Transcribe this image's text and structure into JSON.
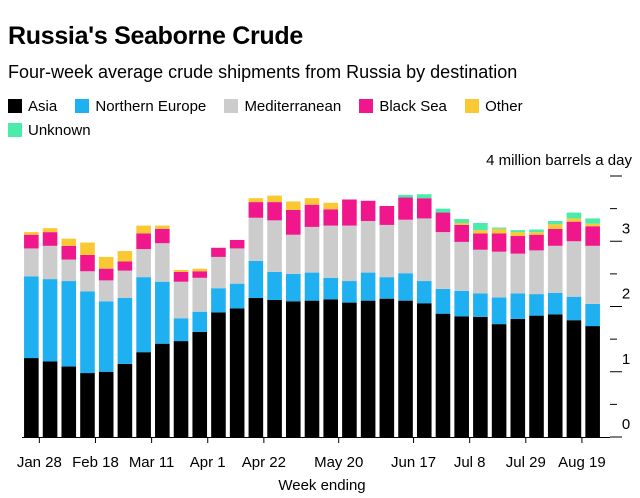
{
  "chart_data": {
    "type": "bar",
    "stacked": true,
    "title": "Russia's Seaborne Crude",
    "subtitle": "Four-week average crude shipments from Russia by destination",
    "unit_label": "4 million barrels a day",
    "xlabel": "Week ending",
    "ylim": [
      0,
      4
    ],
    "y_ticks": [
      0,
      1,
      2,
      3
    ],
    "y_tick_labels": [
      "0",
      "1",
      "2",
      "3"
    ],
    "x_tick_labels": [
      {
        "index": 0,
        "label": "Jan 28"
      },
      {
        "index": 3,
        "label": "Feb 18"
      },
      {
        "index": 6,
        "label": "Mar 11"
      },
      {
        "index": 9,
        "label": "Apr 1"
      },
      {
        "index": 12,
        "label": "Apr 22"
      },
      {
        "index": 16,
        "label": "May 20"
      },
      {
        "index": 20,
        "label": "Jun 17"
      },
      {
        "index": 23,
        "label": "Jul 8"
      },
      {
        "index": 26,
        "label": "Jul 29"
      },
      {
        "index": 29,
        "label": "Aug 19"
      }
    ],
    "series": [
      {
        "name": "Asia",
        "color": "#000000",
        "values": [
          1.21,
          1.16,
          1.08,
          0.98,
          1.0,
          1.12,
          1.3,
          1.43,
          1.47,
          1.61,
          1.91,
          1.97,
          2.13,
          2.1,
          2.08,
          2.09,
          2.11,
          2.06,
          2.09,
          2.12,
          2.09,
          2.05,
          1.89,
          1.85,
          1.84,
          1.73,
          1.81,
          1.86,
          1.88,
          1.79,
          1.7
        ]
      },
      {
        "name": "Northern Europe",
        "color": "#1eb0f0",
        "values": [
          1.25,
          1.26,
          1.31,
          1.25,
          1.08,
          1.01,
          1.15,
          0.95,
          0.35,
          0.31,
          0.37,
          0.38,
          0.57,
          0.43,
          0.42,
          0.43,
          0.33,
          0.33,
          0.43,
          0.33,
          0.42,
          0.34,
          0.38,
          0.39,
          0.36,
          0.41,
          0.39,
          0.33,
          0.33,
          0.36,
          0.34
        ]
      },
      {
        "name": "Mediterranean",
        "color": "#cccccc",
        "values": [
          0.43,
          0.51,
          0.33,
          0.31,
          0.32,
          0.42,
          0.43,
          0.59,
          0.56,
          0.52,
          0.48,
          0.54,
          0.66,
          0.79,
          0.6,
          0.7,
          0.8,
          0.85,
          0.79,
          0.8,
          0.82,
          0.96,
          0.87,
          0.75,
          0.67,
          0.7,
          0.61,
          0.67,
          0.72,
          0.85,
          0.89
        ]
      },
      {
        "name": "Black Sea",
        "color": "#f0168c",
        "values": [
          0.21,
          0.21,
          0.21,
          0.25,
          0.18,
          0.14,
          0.24,
          0.22,
          0.15,
          0.1,
          0.14,
          0.13,
          0.24,
          0.28,
          0.38,
          0.34,
          0.25,
          0.4,
          0.31,
          0.29,
          0.34,
          0.31,
          0.3,
          0.26,
          0.25,
          0.28,
          0.27,
          0.24,
          0.26,
          0.3,
          0.3
        ]
      },
      {
        "name": "Other",
        "color": "#fac832",
        "values": [
          0.04,
          0.06,
          0.11,
          0.19,
          0.18,
          0.16,
          0.12,
          0.05,
          0.03,
          0.04,
          0.0,
          0.0,
          0.06,
          0.1,
          0.13,
          0.1,
          0.1,
          0.0,
          0.0,
          0.0,
          0.0,
          0.0,
          0.0,
          0.03,
          0.05,
          0.07,
          0.06,
          0.04,
          0.07,
          0.05,
          0.04
        ]
      },
      {
        "name": "Unknown",
        "color": "#4bebaa",
        "values": [
          0.0,
          0.0,
          0.0,
          0.0,
          0.0,
          0.0,
          0.0,
          0.0,
          0.0,
          0.0,
          0.0,
          0.0,
          0.0,
          0.0,
          0.0,
          0.0,
          0.0,
          0.0,
          0.0,
          0.0,
          0.04,
          0.06,
          0.06,
          0.06,
          0.11,
          0.02,
          0.03,
          0.04,
          0.05,
          0.09,
          0.08
        ]
      }
    ]
  }
}
